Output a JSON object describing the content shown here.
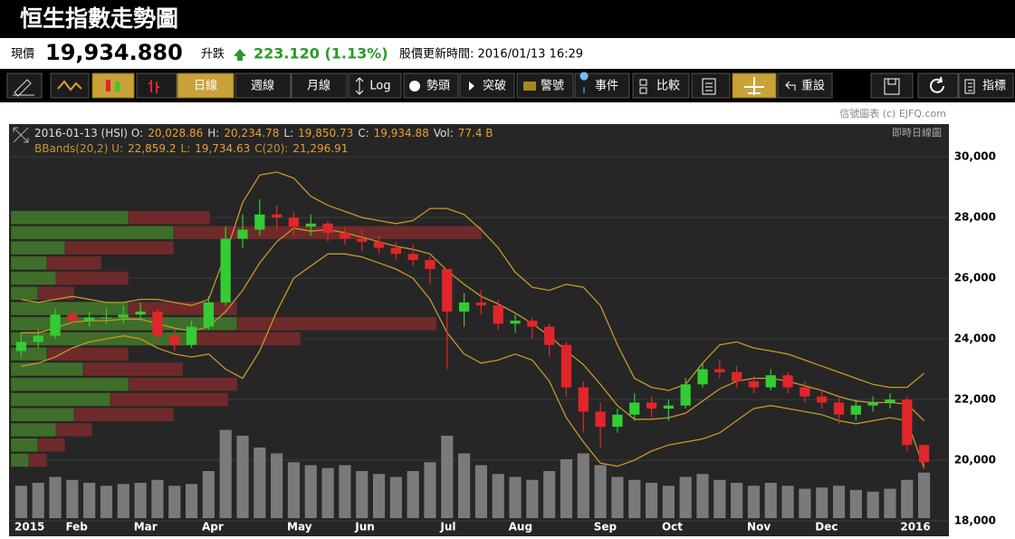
{
  "header": {
    "title": "恒生指數走勢圖"
  },
  "quote": {
    "price_label": "現價",
    "price": "19,934.880",
    "change_label": "升跌",
    "change": "223.120 (1.13%)",
    "updated": "股價更新時間: 2016/01/13 16:29"
  },
  "toolbar": {
    "buttons": [
      "日線",
      "週線",
      "月線",
      "Log",
      "勢頭",
      "突破",
      "警號",
      "事件",
      "比較",
      "重設",
      "指標"
    ]
  },
  "credit": "信號圖表 (c) EJFQ.com",
  "chart_data": {
    "type": "candlestick",
    "mode": "即時日線圖",
    "info_lines": [
      [
        "2016-01-13 (HSI) O:",
        "20,028.86",
        "H:",
        "20,234.78",
        "L:",
        "19,850.73",
        "C:",
        "19,934.88",
        "Vol:",
        "77.4 B"
      ],
      [
        "BBands(20,2) U:",
        "22,859.2",
        "L:",
        "19,734.63",
        "C(20):",
        "21,296.91"
      ]
    ],
    "categories": [
      "2015",
      null,
      null,
      "Feb",
      null,
      null,
      null,
      "Mar",
      null,
      null,
      null,
      "Apr",
      null,
      null,
      null,
      null,
      "May",
      null,
      null,
      null,
      "Jun",
      null,
      null,
      null,
      null,
      "Jul",
      null,
      null,
      null,
      "Aug",
      null,
      null,
      null,
      null,
      "Sep",
      null,
      null,
      null,
      "Oct",
      null,
      null,
      null,
      null,
      "Nov",
      null,
      null,
      null,
      "Dec",
      null,
      null,
      null,
      null,
      "2016",
      null
    ],
    "open": [
      23600,
      23900,
      24100,
      24800,
      24600,
      24700,
      24700,
      24800,
      24900,
      24100,
      23800,
      24400,
      25200,
      27300,
      27600,
      28100,
      28000,
      27700,
      27800,
      27500,
      27300,
      27200,
      27000,
      26800,
      26600,
      26300,
      24900,
      25200,
      25100,
      24500,
      24600,
      24400,
      23800,
      22400,
      21600,
      21100,
      21500,
      21900,
      21700,
      21800,
      22500,
      23000,
      22900,
      22600,
      22400,
      22800,
      22400,
      22100,
      21900,
      21500,
      21800,
      21900,
      22000,
      20500
    ],
    "high": [
      24200,
      24300,
      25000,
      25000,
      24900,
      25000,
      25100,
      25200,
      25000,
      24300,
      24600,
      25400,
      27700,
      28100,
      28600,
      28400,
      28200,
      28100,
      27900,
      27700,
      27600,
      27400,
      27200,
      27100,
      26700,
      26300,
      25500,
      25600,
      25300,
      24800,
      24700,
      24500,
      23900,
      22600,
      21900,
      21700,
      22200,
      22100,
      22000,
      22700,
      23200,
      23300,
      23100,
      22800,
      23000,
      22900,
      22600,
      22300,
      22100,
      22000,
      22100,
      22200,
      22100,
      20500
    ],
    "low": [
      23400,
      23700,
      24000,
      24400,
      24400,
      24500,
      24500,
      24600,
      23900,
      23600,
      23700,
      24300,
      25100,
      27000,
      27400,
      27600,
      27400,
      27400,
      27200,
      27100,
      26900,
      26800,
      26600,
      26400,
      25800,
      23000,
      24400,
      24800,
      24300,
      24200,
      24000,
      23400,
      22100,
      20900,
      20400,
      20900,
      21300,
      21400,
      21300,
      21700,
      22400,
      22700,
      22400,
      22200,
      22300,
      22200,
      21900,
      21700,
      21200,
      21300,
      21600,
      21700,
      20300,
      19700
    ],
    "close": [
      23900,
      24100,
      24800,
      24600,
      24700,
      24700,
      24800,
      24900,
      24100,
      23800,
      24400,
      25200,
      27300,
      27600,
      28100,
      28000,
      27700,
      27800,
      27500,
      27300,
      27200,
      27000,
      26800,
      26600,
      26300,
      24900,
      25200,
      25100,
      24500,
      24600,
      24400,
      23800,
      22400,
      21600,
      21100,
      21500,
      21900,
      21700,
      21800,
      22500,
      23000,
      22900,
      22600,
      22400,
      22800,
      22400,
      22100,
      21900,
      21500,
      21800,
      21900,
      22000,
      20500,
      19935
    ],
    "up_color": "#33cc33",
    "down_color": "#e0262b",
    "bbands": {
      "color": "#c8962a",
      "upper": [
        25300,
        25200,
        25300,
        25400,
        25300,
        25200,
        25200,
        25300,
        25300,
        25200,
        25100,
        25300,
        26800,
        28500,
        29400,
        29500,
        29300,
        28700,
        28400,
        28200,
        28000,
        27900,
        27800,
        27900,
        28300,
        28300,
        28100,
        27600,
        27000,
        26200,
        25700,
        25600,
        25800,
        25700,
        25100,
        23800,
        22700,
        22400,
        22300,
        22500,
        23200,
        23800,
        23900,
        23700,
        23600,
        23500,
        23300,
        23100,
        22900,
        22700,
        22500,
        22400,
        22400,
        22860
      ],
      "middle": [
        24200,
        24200,
        24350,
        24550,
        24600,
        24600,
        24650,
        24650,
        24500,
        24350,
        24250,
        24400,
        24900,
        25600,
        26500,
        27200,
        27650,
        27550,
        27600,
        27500,
        27350,
        27200,
        27050,
        26950,
        26800,
        26250,
        25800,
        25400,
        25150,
        24850,
        24500,
        24100,
        23600,
        23150,
        22500,
        21800,
        21350,
        21350,
        21400,
        21550,
        21950,
        22350,
        22600,
        22700,
        22700,
        22600,
        22450,
        22300,
        22100,
        21950,
        21900,
        21900,
        21850,
        21297
      ],
      "lower": [
        23100,
        23200,
        23400,
        23700,
        23900,
        24000,
        24100,
        24000,
        23700,
        23500,
        23400,
        23500,
        23000,
        22700,
        23600,
        24900,
        26000,
        26400,
        26800,
        26800,
        26700,
        26500,
        26300,
        26000,
        25300,
        24200,
        23500,
        23200,
        23300,
        23500,
        23300,
        22600,
        21400,
        20600,
        19900,
        19800,
        20000,
        20300,
        20500,
        20600,
        20700,
        20900,
        21300,
        21700,
        21800,
        21700,
        21600,
        21500,
        21300,
        21200,
        21300,
        21400,
        21300,
        19735
      ]
    },
    "volume": [
      55,
      60,
      70,
      65,
      60,
      55,
      58,
      60,
      65,
      55,
      58,
      80,
      150,
      140,
      120,
      110,
      95,
      90,
      85,
      90,
      80,
      75,
      70,
      80,
      95,
      140,
      110,
      90,
      75,
      70,
      65,
      80,
      100,
      110,
      90,
      70,
      65,
      60,
      55,
      70,
      75,
      65,
      60,
      55,
      60,
      55,
      50,
      52,
      55,
      48,
      45,
      50,
      65,
      77.4
    ],
    "volume_color": "#7a7a7a",
    "volume_profile": {
      "up_color": "#3f6e2a",
      "down_color": "#6e2a2a",
      "levels": [
        28000,
        27500,
        27000,
        26500,
        26000,
        25500,
        25000,
        24500,
        24000,
        23500,
        23000,
        22500,
        22000,
        21500,
        21000,
        20500,
        20000
      ],
      "up": [
        130,
        180,
        60,
        40,
        50,
        30,
        130,
        250,
        200,
        40,
        80,
        130,
        110,
        70,
        50,
        30,
        20
      ],
      "down": [
        90,
        340,
        120,
        60,
        80,
        40,
        120,
        220,
        120,
        90,
        110,
        120,
        130,
        110,
        40,
        30,
        20
      ]
    },
    "ylim": [
      17490,
      31080
    ],
    "yticks": [
      {
        "value": 18000,
        "label": "18,000"
      },
      {
        "value": 20000,
        "label": "20,000"
      },
      {
        "value": 22000,
        "label": "22,000"
      },
      {
        "value": 24000,
        "label": "24,000"
      },
      {
        "value": 26000,
        "label": "26,000"
      },
      {
        "value": 28000,
        "label": "28,000"
      },
      {
        "value": 30000,
        "label": "30,000"
      }
    ],
    "grid": true
  }
}
